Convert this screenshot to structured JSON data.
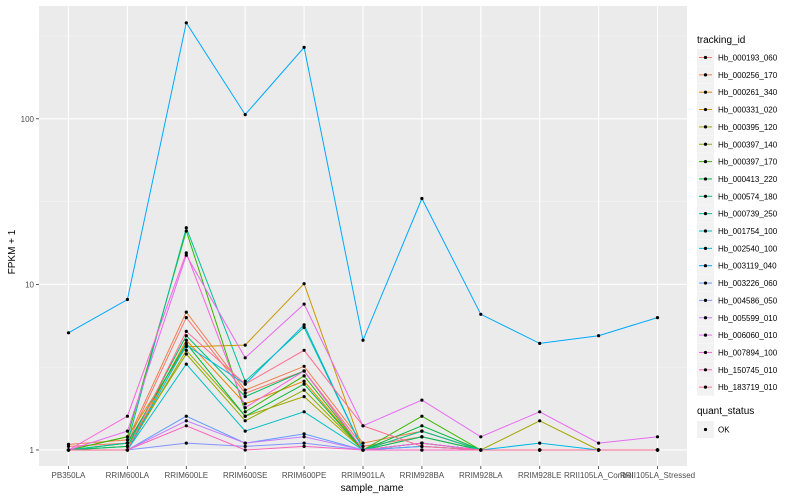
{
  "chart_data": {
    "type": "line",
    "xlabel": "sample_name",
    "ylabel": "FPKM + 1",
    "yscale": "log10",
    "ylim": [
      0.8,
      480
    ],
    "yticks": [
      1,
      10,
      100
    ],
    "ytick_labels": [
      "1",
      "10",
      "100"
    ],
    "grid": true,
    "legend_placement": "right",
    "categories": [
      "PB350LA",
      "RRIM600LA",
      "RRIM600LE",
      "RRIM600SE",
      "RRIM600PE",
      "RRIM901LA",
      "RRIM928BA",
      "RRIM928LA",
      "RRIM928LE",
      "RRII105LA_Control",
      "RRII105LA_Stressed"
    ],
    "legend": {
      "color_title": "tracking_id",
      "shape_title": "quant_status",
      "shape_label": "OK"
    },
    "series": [
      {
        "name": "Hb_000193_060",
        "color": "#F8766D",
        "values": [
          1.05,
          1.1,
          6.3,
          2.2,
          3.0,
          1.05,
          1.2,
          1.0,
          1.0,
          1.0,
          1.0
        ]
      },
      {
        "name": "Hb_000256_170",
        "color": "#F07F4E",
        "values": [
          1.08,
          1.15,
          6.8,
          2.3,
          3.2,
          1.1,
          1.3,
          1.0,
          1.0,
          1.0,
          1.0
        ]
      },
      {
        "name": "Hb_000261_340",
        "color": "#E58700",
        "values": [
          1.0,
          1.0,
          4.6,
          1.9,
          2.6,
          1.0,
          1.1,
          1.0,
          1.0,
          1.0,
          1.0
        ]
      },
      {
        "name": "Hb_000331_020",
        "color": "#C99800",
        "values": [
          1.0,
          1.2,
          4.2,
          4.3,
          10.1,
          1.0,
          1.3,
          1.0,
          1.0,
          1.0,
          1.0
        ]
      },
      {
        "name": "Hb_000395_120",
        "color": "#A3A500",
        "values": [
          1.0,
          1.0,
          4.0,
          1.6,
          2.1,
          1.0,
          1.2,
          1.0,
          1.5,
          1.0,
          1.0
        ]
      },
      {
        "name": "Hb_000397_140",
        "color": "#8BAB00",
        "values": [
          1.0,
          1.05,
          3.8,
          1.5,
          2.3,
          1.0,
          1.1,
          1.0,
          1.0,
          1.0,
          1.0
        ]
      },
      {
        "name": "Hb_000397_170",
        "color": "#39B600",
        "values": [
          1.0,
          1.2,
          21.0,
          1.7,
          2.8,
          1.0,
          1.6,
          1.0,
          1.0,
          1.0,
          1.0
        ]
      },
      {
        "name": "Hb_000413_220",
        "color": "#00BA38",
        "values": [
          1.0,
          1.1,
          4.4,
          1.6,
          2.5,
          1.0,
          1.4,
          1.0,
          1.0,
          1.0,
          1.0
        ]
      },
      {
        "name": "Hb_000574_180",
        "color": "#00BE67",
        "values": [
          1.0,
          1.05,
          4.9,
          2.1,
          3.0,
          1.0,
          1.2,
          1.0,
          1.0,
          1.0,
          1.0
        ]
      },
      {
        "name": "Hb_000739_250",
        "color": "#00C19A",
        "values": [
          1.0,
          1.1,
          22.0,
          2.6,
          5.5,
          1.0,
          1.3,
          1.0,
          1.0,
          1.0,
          1.0
        ]
      },
      {
        "name": "Hb_001754_100",
        "color": "#00BFC4",
        "values": [
          1.0,
          1.0,
          3.3,
          1.3,
          1.7,
          1.0,
          1.05,
          1.0,
          1.0,
          1.0,
          1.0
        ]
      },
      {
        "name": "Hb_002540_100",
        "color": "#00B8E7",
        "values": [
          1.0,
          1.0,
          4.3,
          2.5,
          5.7,
          1.0,
          1.1,
          1.0,
          1.1,
          1.0,
          1.0
        ]
      },
      {
        "name": "Hb_003119_040",
        "color": "#00A9FF",
        "values": [
          5.1,
          8.1,
          380.0,
          106.0,
          270.0,
          4.6,
          33.0,
          6.6,
          4.4,
          4.9,
          6.3
        ]
      },
      {
        "name": "Hb_003226_060",
        "color": "#619CFF",
        "values": [
          1.0,
          1.0,
          1.6,
          1.1,
          1.25,
          1.0,
          1.05,
          1.0,
          1.0,
          1.0,
          1.0
        ]
      },
      {
        "name": "Hb_004586_050",
        "color": "#8494FF",
        "values": [
          1.0,
          1.0,
          1.1,
          1.05,
          1.1,
          1.0,
          1.0,
          1.0,
          1.0,
          1.0,
          1.0
        ]
      },
      {
        "name": "Hb_005599_010",
        "color": "#C77CFF",
        "values": [
          1.0,
          1.0,
          1.5,
          1.1,
          1.2,
          1.0,
          1.0,
          1.0,
          1.0,
          1.0,
          1.0
        ]
      },
      {
        "name": "Hb_006060_010",
        "color": "#E76BF3",
        "values": [
          1.0,
          1.3,
          15.0,
          3.6,
          7.6,
          1.4,
          2.0,
          1.2,
          1.7,
          1.1,
          1.2
        ]
      },
      {
        "name": "Hb_007894_100",
        "color": "#FA62DB",
        "values": [
          1.0,
          1.6,
          15.5,
          1.8,
          3.0,
          1.0,
          1.1,
          1.0,
          1.0,
          1.0,
          1.0
        ]
      },
      {
        "name": "Hb_150745_010",
        "color": "#FF62BC",
        "values": [
          1.0,
          1.0,
          1.4,
          1.0,
          1.05,
          1.0,
          1.0,
          1.0,
          1.0,
          1.0,
          1.0
        ]
      },
      {
        "name": "Hb_183719_010",
        "color": "#FF6C91",
        "values": [
          1.0,
          1.0,
          5.2,
          2.5,
          4.0,
          1.4,
          1.05,
          1.0,
          1.0,
          1.0,
          1.0
        ]
      }
    ]
  }
}
